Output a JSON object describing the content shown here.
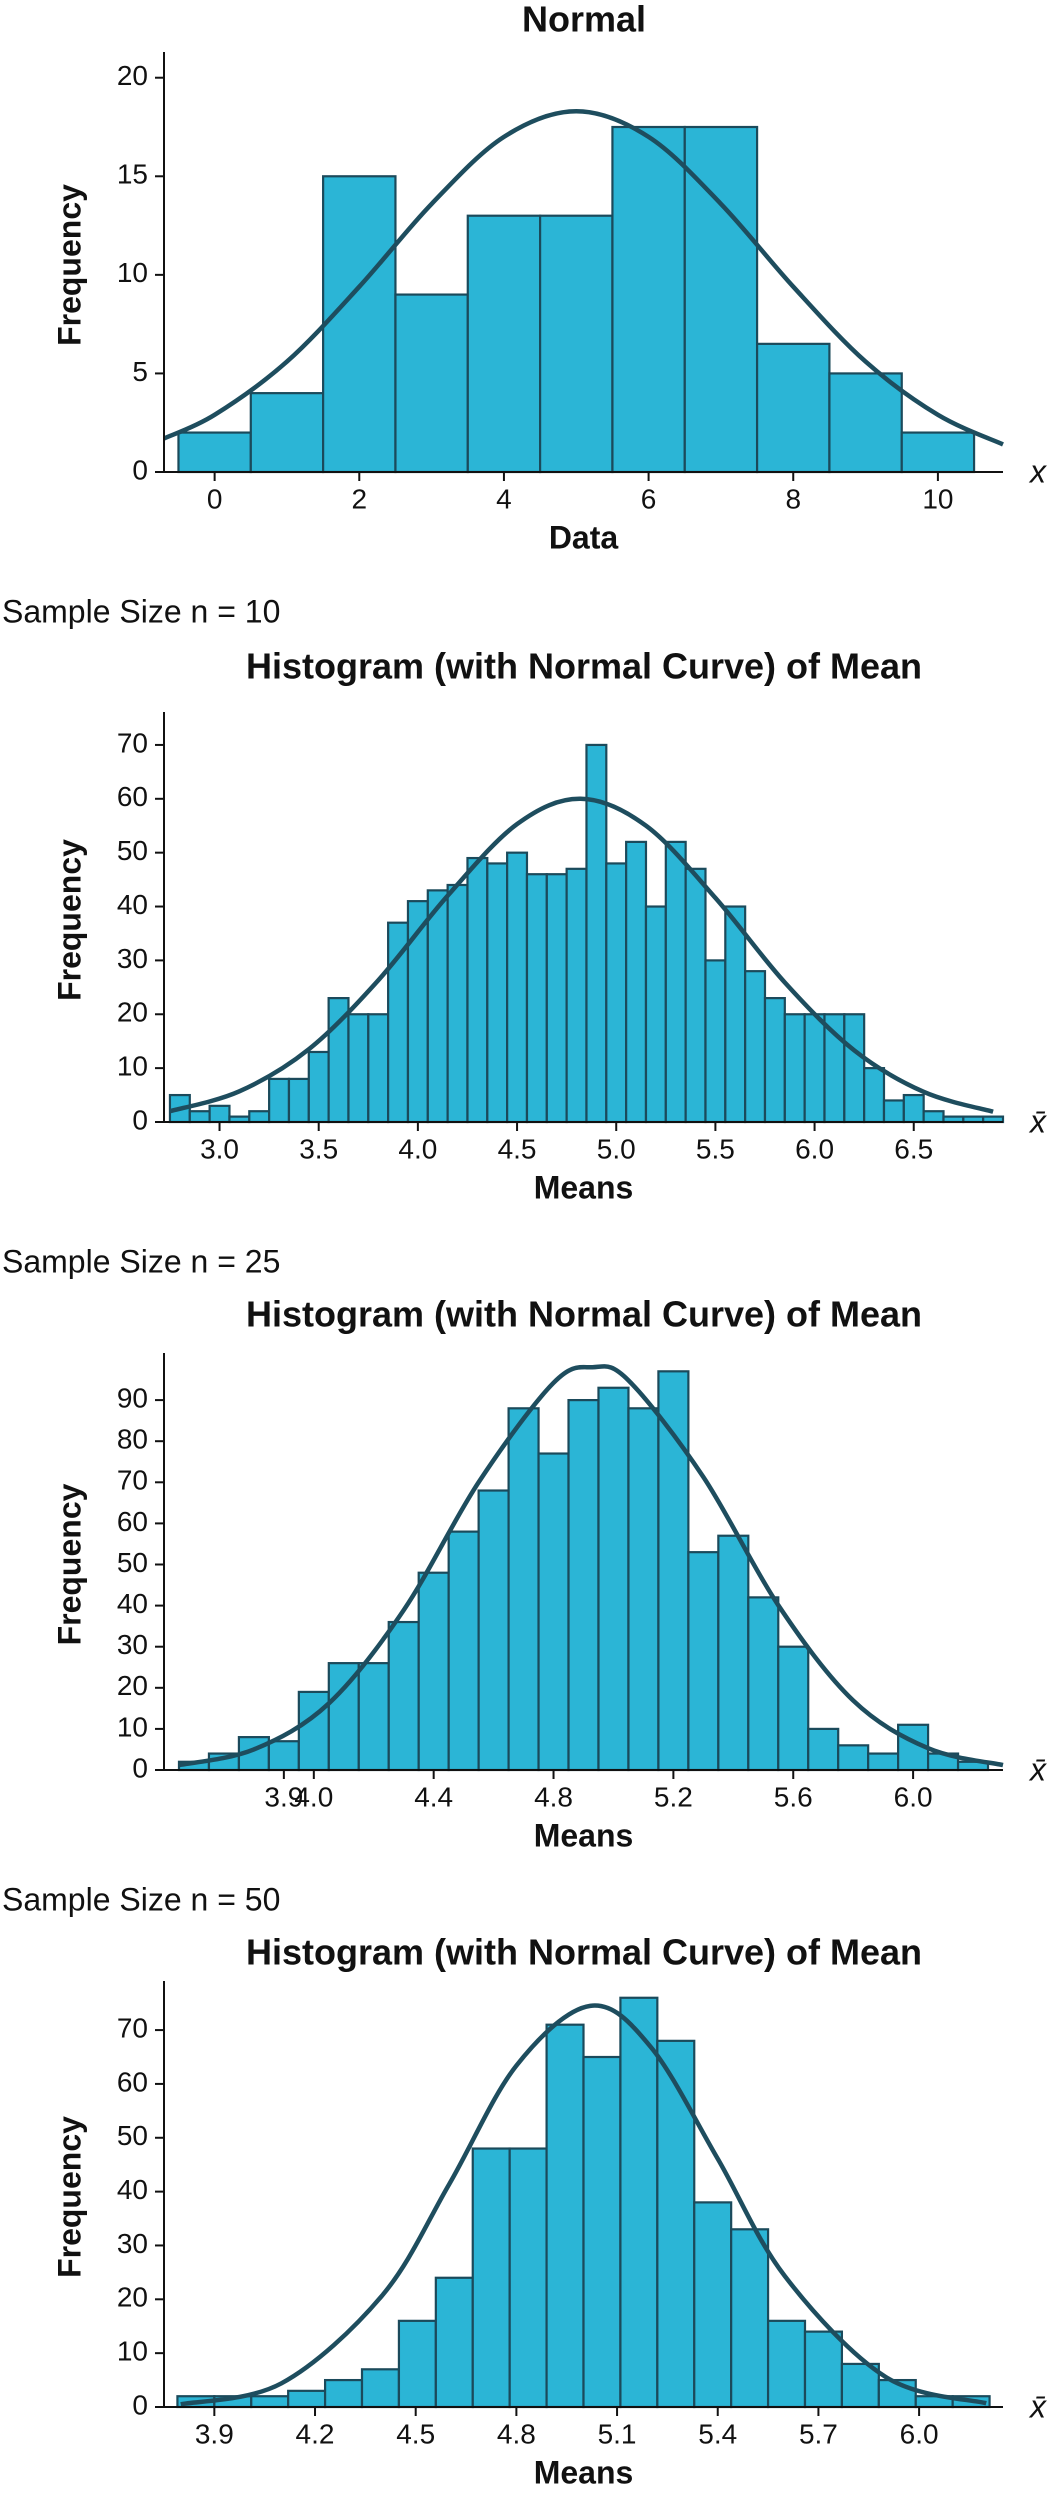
{
  "chart_data": [
    {
      "type": "histogram",
      "title": "Normal",
      "x_label": "Data",
      "y_label": "Frequency",
      "x_symbol": "x",
      "color": "#2bb5d6",
      "edge_color": "#1b4a5b",
      "curve_color": "#1e4d5e",
      "bins": [
        -0.5,
        0.5,
        1.5,
        2.5,
        3.5,
        4.5,
        5.5,
        6.5,
        7.5,
        8.5,
        9.5,
        10.5
      ],
      "counts": [
        2,
        4,
        15,
        9,
        13,
        13,
        17.5,
        17.5,
        6.5,
        5,
        2
      ],
      "curve": {
        "x": [
          -0.7,
          0,
          1,
          2,
          3,
          4,
          5,
          6,
          7,
          8,
          9,
          10,
          10.9
        ],
        "values": [
          1.7,
          2.9,
          5.6,
          9.4,
          13.6,
          17.0,
          18.3,
          17.0,
          13.6,
          9.4,
          5.6,
          2.9,
          1.4
        ]
      },
      "xlim": [
        -0.7,
        10.9
      ],
      "xticks": [
        0,
        2,
        4,
        6,
        8,
        10
      ],
      "ylim": [
        0,
        21
      ],
      "yticks": [
        0,
        5,
        10,
        15,
        20
      ]
    },
    {
      "type": "histogram",
      "subtitle": "Sample Size n = 10",
      "title": "Histogram (with Normal Curve) of Mean",
      "x_label": "Means",
      "y_label": "Frequency",
      "x_symbol": "x̄",
      "color": "#2bb5d6",
      "edge_color": "#1b4a5b",
      "curve_color": "#1e4d5e",
      "bins": [
        2.75,
        2.85,
        2.95,
        3.05,
        3.15,
        3.25,
        3.35,
        3.45,
        3.55,
        3.65,
        3.75,
        3.85,
        3.95,
        4.05,
        4.15,
        4.25,
        4.35,
        4.45,
        4.55,
        4.65,
        4.75,
        4.85,
        4.95,
        5.05,
        5.15,
        5.25,
        5.35,
        5.45,
        5.55,
        5.65,
        5.75,
        5.85,
        5.95,
        6.05,
        6.15,
        6.25,
        6.35,
        6.45,
        6.55,
        6.65,
        6.75,
        6.85,
        6.95
      ],
      "counts": [
        5,
        2,
        3,
        1,
        2,
        8,
        8,
        13,
        23,
        20,
        20,
        37,
        41,
        43,
        44,
        49,
        48,
        50,
        46,
        46,
        47,
        70,
        48,
        52,
        40,
        52,
        47,
        30,
        40,
        28,
        23,
        20,
        20,
        20,
        20,
        10,
        4,
        5,
        2,
        1,
        1,
        1
      ],
      "curve": {
        "x": [
          2.75,
          3.1,
          3.45,
          3.8,
          4.15,
          4.5,
          4.82,
          5.15,
          5.5,
          5.85,
          6.2,
          6.55,
          6.9
        ],
        "values": [
          2.0,
          5.7,
          13.5,
          26.3,
          42.0,
          55.3,
          60,
          55.0,
          41.6,
          25.9,
          13.3,
          5.6,
          1.9
        ]
      },
      "xlim": [
        2.72,
        6.95
      ],
      "xticks": [
        {
          "value": 3,
          "label": "3.0"
        },
        3.5,
        {
          "value": 4,
          "label": "4.0"
        },
        4.5,
        {
          "value": 5,
          "label": "5.0"
        },
        5.5,
        {
          "value": 6,
          "label": "6.0"
        },
        6.5
      ],
      "ylim": [
        0,
        75
      ],
      "yticks": [
        0,
        10,
        20,
        30,
        40,
        50,
        60,
        70
      ]
    },
    {
      "type": "histogram",
      "subtitle": "Sample Size n = 25",
      "title": "Histogram (with Normal Curve) of Mean",
      "x_label": "Means",
      "y_label": "Frequency",
      "x_symbol": "x̄",
      "color": "#2bb5d6",
      "edge_color": "#1b4a5b",
      "curve_color": "#1e4d5e",
      "bins": [
        3.55,
        3.65,
        3.75,
        3.85,
        3.95,
        4.05,
        4.15,
        4.25,
        4.35,
        4.45,
        4.55,
        4.65,
        4.75,
        4.85,
        4.95,
        5.05,
        5.15,
        5.25,
        5.35,
        5.45,
        5.55,
        5.65,
        5.75,
        5.85,
        5.95,
        6.05,
        6.15,
        6.25
      ],
      "counts": [
        2,
        4,
        8,
        7,
        19,
        26,
        26,
        36,
        48,
        58,
        68,
        88,
        77,
        90,
        93,
        88,
        97,
        53,
        57,
        42,
        30,
        10,
        6,
        4,
        11,
        4,
        2
      ],
      "curve": {
        "x": [
          3.55,
          3.8,
          4.05,
          4.3,
          4.55,
          4.8,
          4.93,
          5.05,
          5.3,
          5.55,
          5.8,
          6.05,
          6.3
        ],
        "values": [
          1.2,
          5.0,
          16.2,
          38.9,
          70.0,
          94.2,
          98,
          94.8,
          71.3,
          40.1,
          16.9,
          5.3,
          1.2
        ]
      },
      "xlim": [
        3.5,
        6.3
      ],
      "xticks": [
        3.9,
        {
          "value": 4,
          "label": "4.0"
        },
        4.4,
        4.8,
        5.2,
        5.6,
        {
          "value": 6,
          "label": "6.0"
        }
      ],
      "ylim": [
        0,
        100
      ],
      "yticks": [
        0,
        10,
        20,
        30,
        40,
        50,
        60,
        70,
        80,
        90
      ]
    },
    {
      "type": "histogram",
      "subtitle": "Sample Size n = 50",
      "title": "Histogram (with Normal Curve) of Mean",
      "x_label": "Means",
      "y_label": "Frequency",
      "x_symbol": "x̄",
      "color": "#2bb5d6",
      "edge_color": "#1b4a5b",
      "curve_color": "#1e4d5e",
      "bins": [
        3.79,
        3.9,
        4.01,
        4.12,
        4.23,
        4.34,
        4.45,
        4.56,
        4.67,
        4.78,
        4.89,
        5.0,
        5.11,
        5.22,
        5.33,
        5.44,
        5.55,
        5.66,
        5.77,
        5.88,
        5.99,
        6.1,
        6.21
      ],
      "counts": [
        2,
        2,
        2,
        3,
        5,
        7,
        16,
        24,
        48,
        48,
        71,
        65,
        76,
        68,
        38,
        33,
        16,
        14,
        8,
        5,
        2,
        2
      ],
      "curve": {
        "x": [
          3.8,
          4.1,
          4.4,
          4.6,
          4.8,
          5.02,
          5.2,
          5.4,
          5.6,
          5.9,
          6.2
        ],
        "values": [
          0.5,
          4.4,
          20.7,
          41.4,
          63.4,
          74.5,
          66.9,
          46.1,
          24.3,
          5.6,
          0.7
        ]
      },
      "xlim": [
        3.75,
        6.25
      ],
      "xticks": [
        3.9,
        4.2,
        4.5,
        4.8,
        5.1,
        5.4,
        5.7,
        {
          "value": 6,
          "label": "6.0"
        }
      ],
      "ylim": [
        0,
        78
      ],
      "yticks": [
        0,
        10,
        20,
        30,
        40,
        50,
        60,
        70
      ]
    }
  ]
}
